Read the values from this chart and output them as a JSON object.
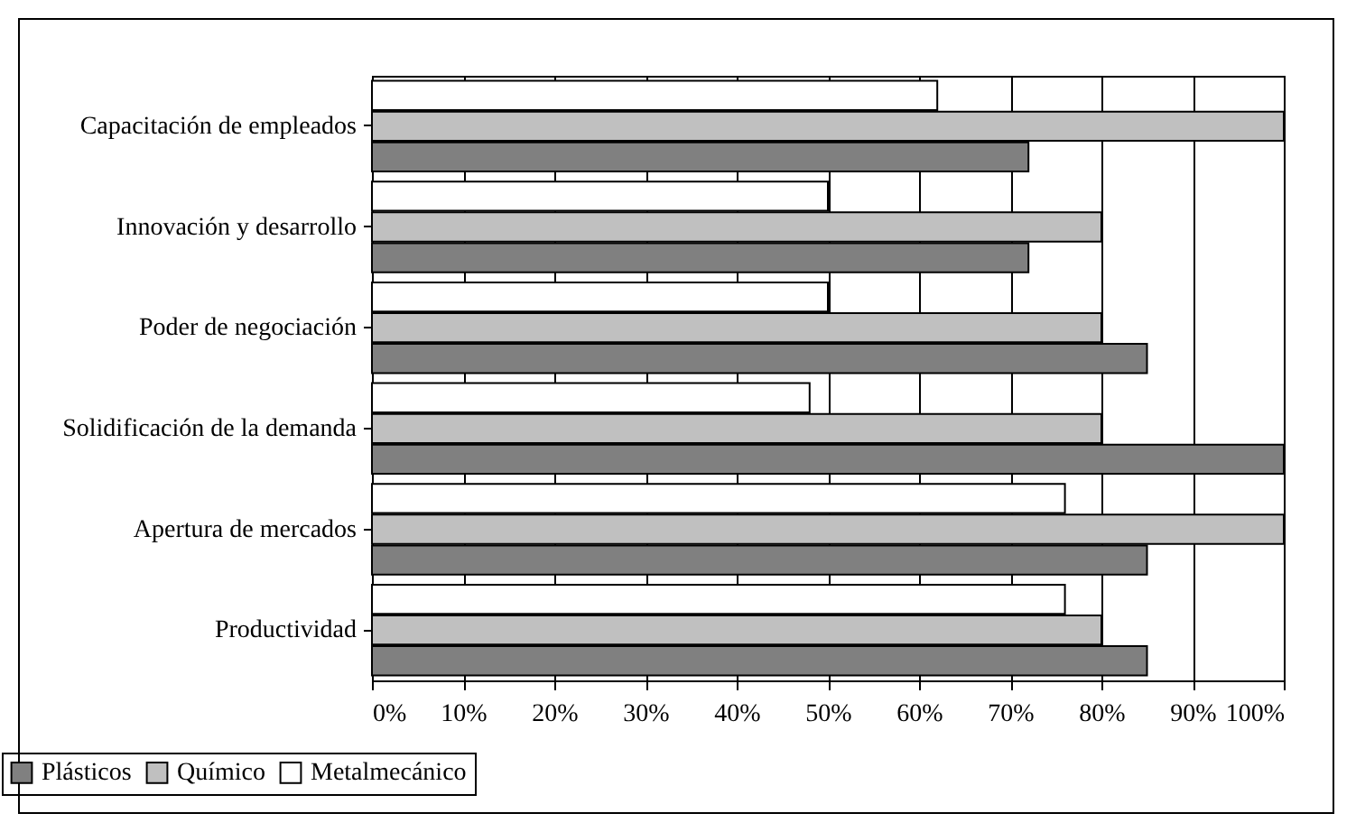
{
  "chart_data": {
    "type": "bar",
    "orientation": "horizontal",
    "categories": [
      "Capacitación de empleados",
      "Innovación y desarrollo",
      "Poder de negociación",
      "Solidificación de la demanda",
      "Apertura de mercados",
      "Productividad"
    ],
    "series": [
      {
        "name": "Plásticos",
        "color": "#808080",
        "values": [
          72,
          72,
          85,
          100,
          85,
          85
        ]
      },
      {
        "name": "Químico",
        "color": "#c0c0c0",
        "values": [
          100,
          80,
          80,
          80,
          100,
          80
        ]
      },
      {
        "name": "Metalmecánico",
        "color": "#ffffff",
        "values": [
          62,
          50,
          50,
          48,
          76,
          76
        ]
      }
    ],
    "xlim": [
      0,
      100
    ],
    "xticks": [
      {
        "value": 0,
        "label": "0%"
      },
      {
        "value": 10,
        "label": "10%"
      },
      {
        "value": 20,
        "label": "20%"
      },
      {
        "value": 30,
        "label": "30%"
      },
      {
        "value": 40,
        "label": "40%"
      },
      {
        "value": 50,
        "label": "50%"
      },
      {
        "value": 60,
        "label": "60%"
      },
      {
        "value": 70,
        "label": "70%"
      },
      {
        "value": 80,
        "label": "80%"
      },
      {
        "value": 90,
        "label": "90%"
      },
      {
        "value": 100,
        "label": "100%"
      }
    ],
    "grid": "x",
    "legend": "bottom left"
  }
}
